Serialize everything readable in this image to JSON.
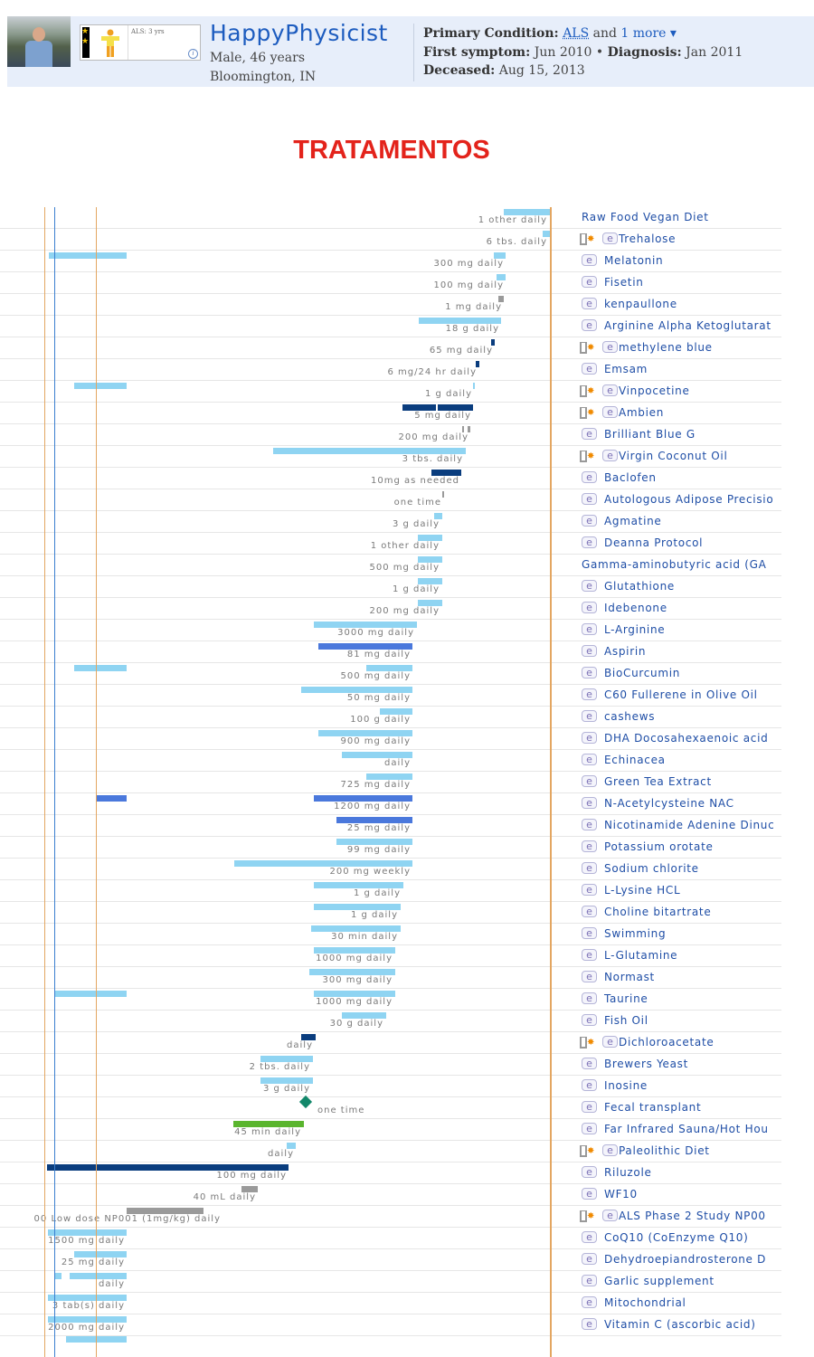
{
  "header": {
    "username": "HappyPhysicist",
    "badge_text": "ALS: 3 yrs",
    "gender_age": "Male, 46 years",
    "location": "Bloomington, IN",
    "primary_condition_label": "Primary Condition:",
    "primary_condition": "ALS",
    "condition_and": "and",
    "more_link": "1 more ▾",
    "first_symptom_label": "First symptom:",
    "first_symptom": "Jun 2010",
    "bullet": "•",
    "diagnosis_label": "Diagnosis:",
    "diagnosis": "Jan 2011",
    "deceased_label": "Deceased:",
    "deceased": "Aug 15, 2013"
  },
  "title": "TRATAMENTOS",
  "colors": {
    "light": "#8fd4f2",
    "dark": "#0a3d7e",
    "medium": "#4a78dc",
    "gray": "#9a9a9a",
    "green": "#5ab52e",
    "diamond": "#12876a",
    "orange_line": "#e3a661",
    "blue_line": "#3a7fd0"
  },
  "rows": [
    {
      "name": "Raw Food Vegan Diet",
      "dose": "1 other daily",
      "icons": ""
    },
    {
      "name": "Trehalose",
      "dose": "6 tbs. daily",
      "icons": "pe"
    },
    {
      "name": "Melatonin",
      "dose": "300 mg daily",
      "icons": "e"
    },
    {
      "name": "Fisetin",
      "dose": "100 mg daily",
      "icons": "e"
    },
    {
      "name": "kenpaullone",
      "dose": "1 mg daily",
      "icons": "e"
    },
    {
      "name": "Arginine Alpha Ketoglutarat",
      "dose": "18 g daily",
      "icons": "e"
    },
    {
      "name": "methylene blue",
      "dose": "65 mg daily",
      "icons": "pe"
    },
    {
      "name": "Emsam",
      "dose": "6 mg/24 hr daily",
      "icons": "e"
    },
    {
      "name": "Vinpocetine",
      "dose": "1 g daily",
      "icons": "pe"
    },
    {
      "name": "Ambien",
      "dose": "5 mg daily",
      "icons": "pe"
    },
    {
      "name": "Brilliant Blue G",
      "dose": "200 mg daily",
      "icons": "e"
    },
    {
      "name": "Virgin Coconut Oil",
      "dose": "3 tbs. daily",
      "icons": "pe"
    },
    {
      "name": "Baclofen",
      "dose": "10mg as needed",
      "icons": "e"
    },
    {
      "name": "Autologous Adipose Precisio",
      "dose": "one time",
      "icons": "e"
    },
    {
      "name": "Agmatine",
      "dose": "3 g daily",
      "icons": "e"
    },
    {
      "name": "Deanna Protocol",
      "dose": "1 other daily",
      "icons": "e"
    },
    {
      "name": "Gamma-aminobutyric acid (GA",
      "dose": "500 mg daily",
      "icons": ""
    },
    {
      "name": "Glutathione",
      "dose": "1 g daily",
      "icons": "e"
    },
    {
      "name": "Idebenone",
      "dose": "200 mg daily",
      "icons": "e"
    },
    {
      "name": "L-Arginine",
      "dose": "3000 mg daily",
      "icons": "e"
    },
    {
      "name": "Aspirin",
      "dose": "81 mg daily",
      "icons": "e"
    },
    {
      "name": "BioCurcumin",
      "dose": "500 mg daily",
      "icons": "e"
    },
    {
      "name": "C60 Fullerene in Olive Oil",
      "dose": "50 mg daily",
      "icons": "e"
    },
    {
      "name": "cashews",
      "dose": "100 g daily",
      "icons": "e"
    },
    {
      "name": "DHA Docosahexaenoic acid",
      "dose": "900 mg daily",
      "icons": "e"
    },
    {
      "name": "Echinacea",
      "dose": "daily",
      "icons": "e"
    },
    {
      "name": "Green Tea Extract",
      "dose": "725 mg daily",
      "icons": "e"
    },
    {
      "name": "N-Acetylcysteine NAC",
      "dose": "1200 mg daily",
      "icons": "e"
    },
    {
      "name": "Nicotinamide Adenine Dinuc",
      "dose": "25 mg daily",
      "icons": "e"
    },
    {
      "name": "Potassium orotate",
      "dose": "99 mg daily",
      "icons": "e"
    },
    {
      "name": "Sodium chlorite",
      "dose": "200 mg weekly",
      "icons": "e"
    },
    {
      "name": "L-Lysine HCL",
      "dose": "1 g daily",
      "icons": "e"
    },
    {
      "name": "Choline bitartrate",
      "dose": "1 g daily",
      "icons": "e"
    },
    {
      "name": "Swimming",
      "dose": "30 min daily",
      "icons": "e"
    },
    {
      "name": "L-Glutamine",
      "dose": "1000 mg daily",
      "icons": "e"
    },
    {
      "name": "Normast",
      "dose": "300 mg daily",
      "icons": "e"
    },
    {
      "name": "Taurine",
      "dose": "1000 mg daily",
      "icons": "e"
    },
    {
      "name": "Fish Oil",
      "dose": "30 g daily",
      "icons": "e"
    },
    {
      "name": "Dichloroacetate",
      "dose": "daily",
      "icons": "pe"
    },
    {
      "name": "Brewers Yeast",
      "dose": "2 tbs. daily",
      "icons": "e"
    },
    {
      "name": "Inosine",
      "dose": "3 g daily",
      "icons": "e"
    },
    {
      "name": "Fecal transplant",
      "dose": "one time",
      "icons": "e"
    },
    {
      "name": "Far Infrared Sauna/Hot Hou",
      "dose": "45 min daily",
      "icons": "e"
    },
    {
      "name": "Paleolithic Diet",
      "dose": "daily",
      "icons": "pe"
    },
    {
      "name": "Riluzole",
      "dose": "100 mg daily",
      "icons": "e"
    },
    {
      "name": "WF10",
      "dose": "40 mL daily",
      "icons": "e"
    },
    {
      "name": "ALS Phase 2 Study NP00",
      "dose": "00 Low dose NP001 (1mg/kg) daily",
      "icons": "pe"
    },
    {
      "name": "CoQ10 (CoEnzyme Q10)",
      "dose": "1500 mg daily",
      "icons": "e"
    },
    {
      "name": "Dehydroepiandrosterone D",
      "dose": "25 mg daily",
      "icons": "e"
    },
    {
      "name": "Garlic supplement",
      "dose": "daily",
      "icons": "e"
    },
    {
      "name": "Mitochondrial",
      "dose": "3 tab(s) daily",
      "icons": "e"
    },
    {
      "name": "Vitamin C (ascorbic acid)",
      "dose": "2000 mg daily",
      "icons": "e"
    }
  ]
}
